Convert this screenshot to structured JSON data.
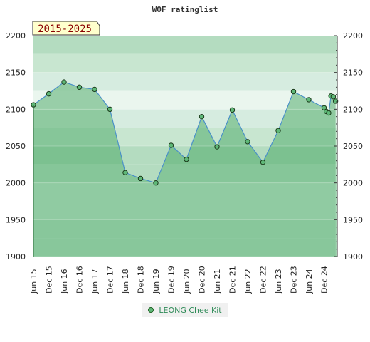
{
  "chart_data": {
    "type": "area",
    "title": "WOF ratinglist",
    "period_label": "2015-2025",
    "ylim": [
      1900,
      2200
    ],
    "yticks": [
      1900,
      1950,
      2000,
      2050,
      2100,
      2150,
      2200
    ],
    "ytick_labels": [
      "1900",
      "1950",
      "2000",
      "2050",
      "2100",
      "2150",
      "2200"
    ],
    "xtick_labels": [
      "Jun 15",
      "Dec 15",
      "Jun 16",
      "Dec 16",
      "Jun 17",
      "Dec 17",
      "Jun 18",
      "Dec 18",
      "Jun 19",
      "Dec 19",
      "Jun 20",
      "Dec 20",
      "Jun 21",
      "Dec 21",
      "Jun 22",
      "Dec 22",
      "Jun 23",
      "Dec 23",
      "Jun 24",
      "Dec 24"
    ],
    "grid": true,
    "legend_position": "bottom",
    "series": [
      {
        "name": "LEONG Chee Kit",
        "color": "#5fb878",
        "x": [
          0,
          1,
          2,
          3,
          4,
          5,
          6,
          7,
          8,
          9,
          10,
          11,
          12,
          13,
          14,
          15,
          16,
          17,
          18,
          19,
          19.15,
          19.3,
          19.45,
          19.6,
          19.75
        ],
        "values": [
          2106,
          2121,
          2137,
          2130,
          2127,
          2100,
          2014,
          2006,
          2000,
          2051,
          2032,
          2090,
          2049,
          2099,
          2056,
          2028,
          2071,
          2124,
          2113,
          2102,
          2097,
          2095,
          2118,
          2117,
          2111
        ]
      }
    ]
  }
}
